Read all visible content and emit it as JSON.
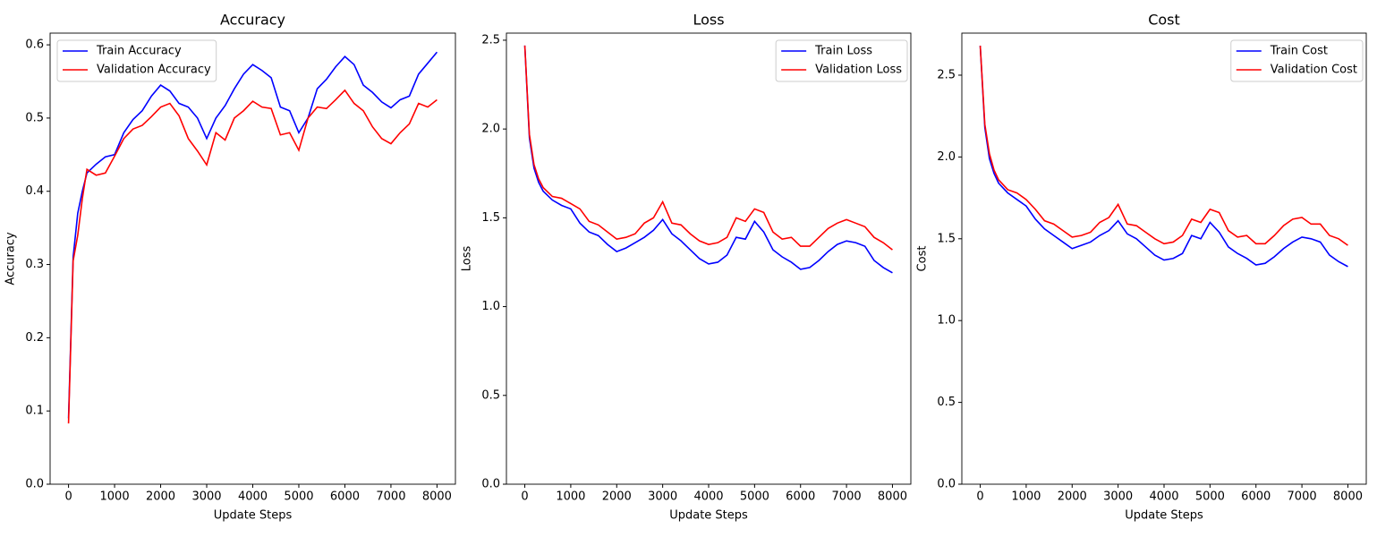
{
  "chart_data": [
    {
      "type": "line",
      "title": "Accuracy",
      "x_label": "Update Steps",
      "y_label": "Accuracy",
      "x": [
        0,
        100,
        200,
        300,
        400,
        600,
        800,
        1000,
        1200,
        1400,
        1600,
        1800,
        2000,
        2200,
        2400,
        2600,
        2800,
        3000,
        3200,
        3400,
        3600,
        3800,
        4000,
        4200,
        4400,
        4600,
        4800,
        5000,
        5200,
        5400,
        5600,
        5800,
        6000,
        6200,
        6400,
        6600,
        6800,
        7000,
        7200,
        7400,
        7600,
        7800,
        8000
      ],
      "series": [
        {
          "name": "Train Accuracy",
          "color": "#0000ff",
          "values": [
            0.09,
            0.31,
            0.37,
            0.4,
            0.425,
            0.437,
            0.447,
            0.45,
            0.48,
            0.498,
            0.51,
            0.53,
            0.545,
            0.537,
            0.52,
            0.515,
            0.5,
            0.472,
            0.5,
            0.517,
            0.54,
            0.56,
            0.573,
            0.565,
            0.555,
            0.515,
            0.51,
            0.48,
            0.5,
            0.54,
            0.553,
            0.57,
            0.584,
            0.573,
            0.545,
            0.535,
            0.522,
            0.514,
            0.525,
            0.53,
            0.56,
            0.575,
            0.59
          ]
        },
        {
          "name": "Validation Accuracy",
          "color": "#ff0000",
          "values": [
            0.083,
            0.305,
            0.34,
            0.39,
            0.43,
            0.422,
            0.425,
            0.448,
            0.472,
            0.485,
            0.49,
            0.502,
            0.515,
            0.52,
            0.503,
            0.472,
            0.455,
            0.436,
            0.48,
            0.47,
            0.5,
            0.51,
            0.523,
            0.515,
            0.513,
            0.477,
            0.48,
            0.456,
            0.5,
            0.515,
            0.513,
            0.525,
            0.538,
            0.52,
            0.51,
            0.488,
            0.472,
            0.465,
            0.48,
            0.492,
            0.52,
            0.515,
            0.525
          ]
        }
      ],
      "xlim": [
        -400,
        8400
      ],
      "ylim": [
        0,
        0.616
      ],
      "xticks": [
        0,
        1000,
        2000,
        3000,
        4000,
        5000,
        6000,
        7000,
        8000
      ],
      "yticks": [
        {
          "value": 0,
          "label": "0.0"
        },
        0.1,
        0.2,
        0.3,
        0.4,
        0.5,
        0.6
      ],
      "grid": false,
      "legend": "upper-left"
    },
    {
      "type": "line",
      "title": "Loss",
      "x_label": "Update Steps",
      "y_label": "Loss",
      "x": [
        0,
        100,
        200,
        300,
        400,
        600,
        800,
        1000,
        1200,
        1400,
        1600,
        1800,
        2000,
        2200,
        2400,
        2600,
        2800,
        3000,
        3200,
        3400,
        3600,
        3800,
        4000,
        4200,
        4400,
        4600,
        4800,
        5000,
        5200,
        5400,
        5600,
        5800,
        6000,
        6200,
        6400,
        6600,
        6800,
        7000,
        7200,
        7400,
        7600,
        7800,
        8000
      ],
      "series": [
        {
          "name": "Train Loss",
          "color": "#0000ff",
          "values": [
            2.47,
            1.95,
            1.78,
            1.7,
            1.65,
            1.6,
            1.57,
            1.55,
            1.47,
            1.42,
            1.4,
            1.35,
            1.31,
            1.33,
            1.36,
            1.39,
            1.43,
            1.49,
            1.41,
            1.37,
            1.32,
            1.27,
            1.24,
            1.25,
            1.29,
            1.39,
            1.38,
            1.48,
            1.42,
            1.32,
            1.28,
            1.25,
            1.21,
            1.22,
            1.26,
            1.31,
            1.35,
            1.37,
            1.36,
            1.34,
            1.26,
            1.22,
            1.19
          ]
        },
        {
          "name": "Validation Loss",
          "color": "#ff0000",
          "values": [
            2.47,
            1.97,
            1.8,
            1.72,
            1.67,
            1.62,
            1.61,
            1.58,
            1.55,
            1.48,
            1.46,
            1.42,
            1.38,
            1.39,
            1.41,
            1.47,
            1.5,
            1.59,
            1.47,
            1.46,
            1.41,
            1.37,
            1.35,
            1.36,
            1.39,
            1.5,
            1.48,
            1.55,
            1.53,
            1.42,
            1.38,
            1.39,
            1.34,
            1.34,
            1.39,
            1.44,
            1.47,
            1.49,
            1.47,
            1.45,
            1.39,
            1.36,
            1.32
          ]
        }
      ],
      "xlim": [
        -400,
        8400
      ],
      "ylim": [
        0,
        2.54
      ],
      "xticks": [
        0,
        1000,
        2000,
        3000,
        4000,
        5000,
        6000,
        7000,
        8000
      ],
      "yticks": [
        {
          "value": 0,
          "label": "0.0"
        },
        0.5,
        {
          "value": 1,
          "label": "1.0"
        },
        1.5,
        {
          "value": 2,
          "label": "2.0"
        },
        2.5
      ],
      "grid": false,
      "legend": "upper-right"
    },
    {
      "type": "line",
      "title": "Cost",
      "x_label": "Update Steps",
      "y_label": "Cost",
      "x": [
        0,
        100,
        200,
        300,
        400,
        600,
        800,
        1000,
        1200,
        1400,
        1600,
        1800,
        2000,
        2200,
        2400,
        2600,
        2800,
        3000,
        3200,
        3400,
        3600,
        3800,
        4000,
        4200,
        4400,
        4600,
        4800,
        5000,
        5200,
        5400,
        5600,
        5800,
        6000,
        6200,
        6400,
        6600,
        6800,
        7000,
        7200,
        7400,
        7600,
        7800,
        8000
      ],
      "series": [
        {
          "name": "Train Cost",
          "color": "#0000ff",
          "values": [
            2.68,
            2.18,
            1.99,
            1.9,
            1.84,
            1.78,
            1.74,
            1.7,
            1.62,
            1.56,
            1.52,
            1.48,
            1.44,
            1.46,
            1.48,
            1.52,
            1.55,
            1.61,
            1.53,
            1.5,
            1.45,
            1.4,
            1.37,
            1.38,
            1.41,
            1.52,
            1.5,
            1.6,
            1.54,
            1.45,
            1.41,
            1.38,
            1.34,
            1.35,
            1.39,
            1.44,
            1.48,
            1.51,
            1.5,
            1.48,
            1.4,
            1.36,
            1.33
          ]
        },
        {
          "name": "Validation Cost",
          "color": "#ff0000",
          "values": [
            2.68,
            2.2,
            2.02,
            1.92,
            1.86,
            1.8,
            1.78,
            1.74,
            1.68,
            1.61,
            1.59,
            1.55,
            1.51,
            1.52,
            1.54,
            1.6,
            1.63,
            1.71,
            1.59,
            1.58,
            1.54,
            1.5,
            1.47,
            1.48,
            1.52,
            1.62,
            1.6,
            1.68,
            1.66,
            1.55,
            1.51,
            1.52,
            1.47,
            1.47,
            1.52,
            1.58,
            1.62,
            1.63,
            1.59,
            1.59,
            1.52,
            1.5,
            1.46
          ]
        }
      ],
      "xlim": [
        -400,
        8400
      ],
      "ylim": [
        0,
        2.757
      ],
      "xticks": [
        0,
        1000,
        2000,
        3000,
        4000,
        5000,
        6000,
        7000,
        8000
      ],
      "yticks": [
        {
          "value": 0,
          "label": "0.0"
        },
        0.5,
        {
          "value": 1,
          "label": "1.0"
        },
        1.5,
        {
          "value": 2,
          "label": "2.0"
        },
        2.5
      ],
      "grid": false,
      "legend": "upper-right"
    }
  ]
}
